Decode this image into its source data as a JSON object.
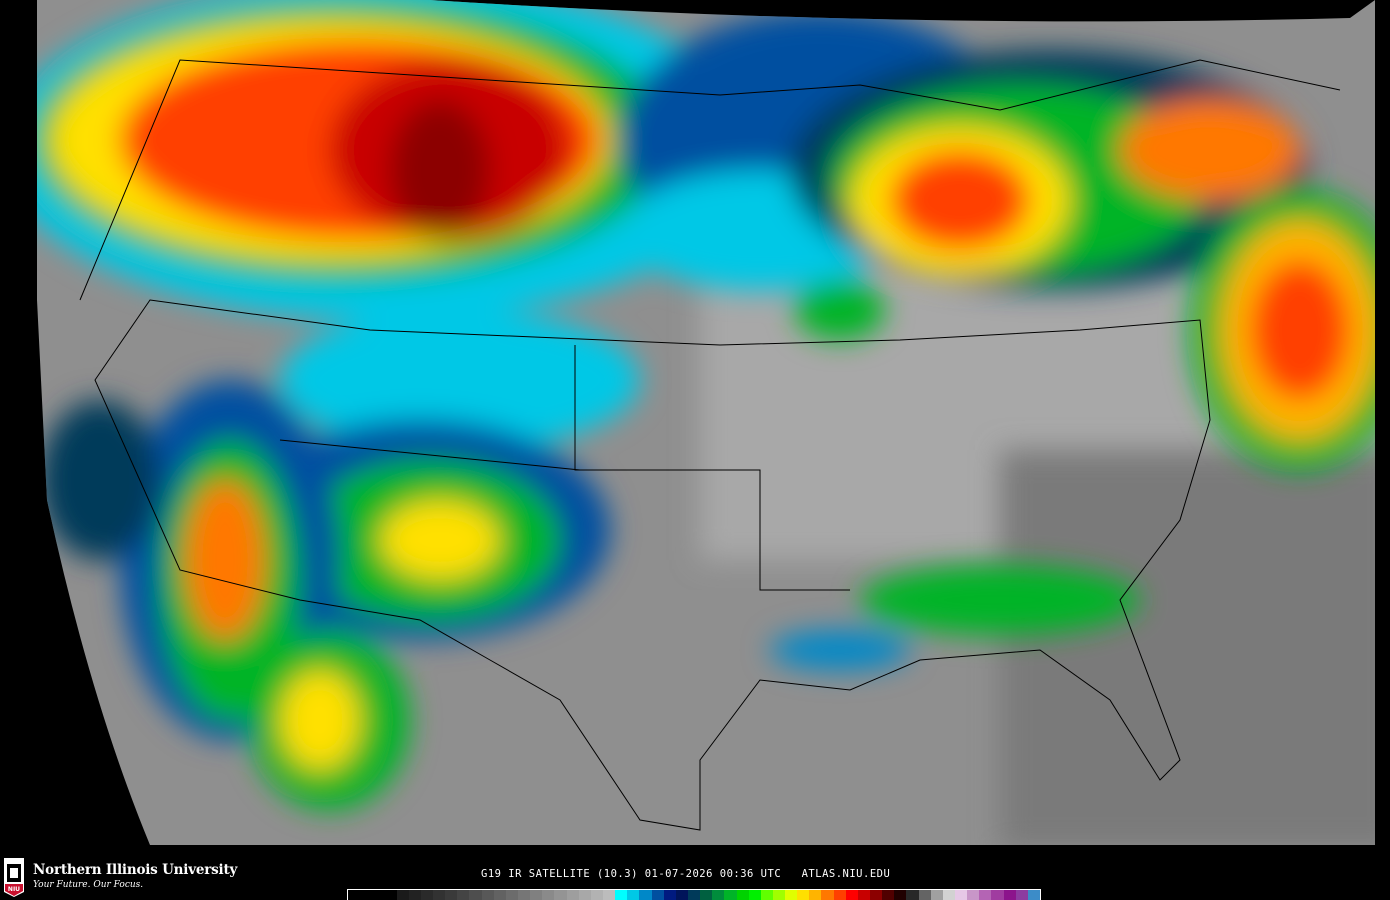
{
  "product": {
    "caption": "G19 IR SATELLITE (10.3) 01-07-2026 00:36 UTC   ATLAS.NIU.EDU"
  },
  "branding": {
    "name": "Northern Illinois University",
    "tagline": "Your Future. Our Focus.",
    "logo_text": "NIU",
    "logo_color": "#c8102e"
  },
  "colorbar": {
    "colors": [
      "#000000",
      "#000000",
      "#000000",
      "#000000",
      "#1a1a1a",
      "#222222",
      "#2a2a2a",
      "#323232",
      "#3a3a3a",
      "#444444",
      "#4e4e4e",
      "#585858",
      "#626262",
      "#6c6c6c",
      "#767676",
      "#808080",
      "#8a8a8a",
      "#949494",
      "#9e9e9e",
      "#a8a8a8",
      "#b2b2b2",
      "#bcbcbc",
      "#00ffff",
      "#00c8e6",
      "#0088c8",
      "#0050a0",
      "#001a80",
      "#00145a",
      "#003a5a",
      "#006040",
      "#008c3c",
      "#00b428",
      "#00d200",
      "#00f000",
      "#60ff00",
      "#a0ff00",
      "#e0ff00",
      "#ffe000",
      "#ffb400",
      "#ff7800",
      "#ff4000",
      "#ff0000",
      "#c80000",
      "#8c0000",
      "#500000",
      "#200000",
      "#282828",
      "#646464",
      "#a0a0a0",
      "#d2d2d2",
      "#e6c8e6",
      "#c896c8",
      "#b464b4",
      "#a03ca0",
      "#8c148c",
      "#8c3ca0",
      "#3c8cc8"
    ]
  }
}
